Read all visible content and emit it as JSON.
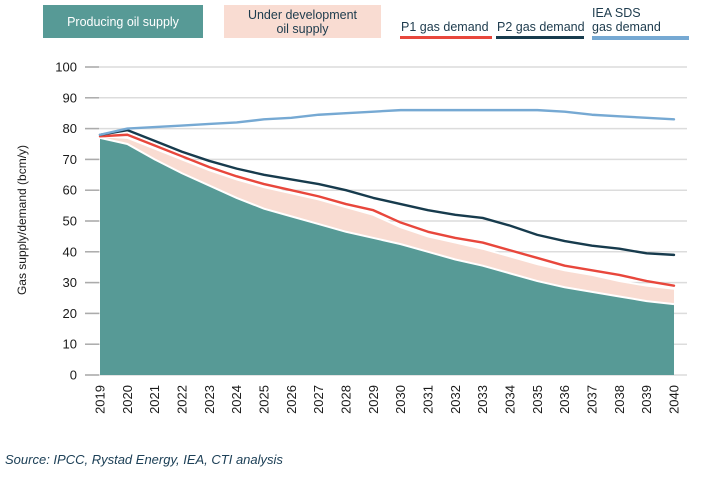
{
  "page": {
    "source_note": "Source: IPCC, Rystad Energy, IEA, CTI analysis"
  },
  "colors": {
    "producing_fill": "#579A96",
    "under_dev_fill": "#F9DCD2",
    "p1_line": "#E8473C",
    "p2_line": "#173B4D",
    "iea_line": "#76A9D3",
    "gridline": "#DCDCDC",
    "tick": "#ABABAB",
    "axis_text": "#1A1A1A",
    "legend_text_dark": "#1D3B4D",
    "legend_text_light": "#FFFFFF",
    "area_separator": "#FFFFFF",
    "source_text": "#1D4057"
  },
  "legend": {
    "producing_label": "Producing oil supply",
    "under_dev_label_line1": "Under development",
    "under_dev_label_line2": "oil supply",
    "p1_label": "P1 gas demand",
    "p2_label": "P2 gas demand",
    "iea_label_line1": "IEA SDS",
    "iea_label_line2": "gas demand"
  },
  "axes": {
    "y_label": "Gas supply/demand (bcm/y)",
    "y_ticks": [
      0,
      10,
      20,
      30,
      40,
      50,
      60,
      70,
      80,
      90,
      100
    ]
  },
  "chart_data": {
    "type": "area",
    "title": "",
    "xlabel": "",
    "ylabel": "Gas supply/demand (bcm/y)",
    "ylim": [
      0,
      100
    ],
    "grid": true,
    "legend_position": "top",
    "x_categories": [
      "2019",
      "2020",
      "2021",
      "2022",
      "2023",
      "2024",
      "2025",
      "2026",
      "2027",
      "2028",
      "2029",
      "2030",
      "2031",
      "2032",
      "2033",
      "2034",
      "2035",
      "2036",
      "2037",
      "2038",
      "2039",
      "2040"
    ],
    "series": [
      {
        "name": "Producing oil supply",
        "type": "area-stacked",
        "color": "#579A96",
        "values": [
          77,
          75,
          70,
          65.5,
          61.5,
          57.5,
          54,
          51.5,
          49,
          46.5,
          44.5,
          42.5,
          40,
          37.5,
          35.5,
          33,
          30.5,
          28.5,
          27,
          25.5,
          24,
          23
        ]
      },
      {
        "name": "Under development oil supply",
        "type": "area-stacked",
        "stacked_on": "Producing oil supply",
        "color": "#F9DCD2",
        "values": [
          0.5,
          2,
          3.5,
          4.5,
          5,
          6,
          7,
          7.5,
          8,
          8,
          7.5,
          5.5,
          5,
          5.5,
          5.5,
          5.5,
          5.5,
          5.5,
          5.5,
          5,
          5,
          5
        ]
      },
      {
        "name": "P1 gas demand",
        "type": "line",
        "color": "#E8473C",
        "values": [
          77.5,
          78,
          74.5,
          71,
          67.5,
          64.5,
          62,
          60,
          58,
          55.5,
          53.5,
          49.5,
          46.5,
          44.5,
          43,
          40.5,
          38,
          35.5,
          34,
          32.5,
          30.5,
          29
        ]
      },
      {
        "name": "P2 gas demand",
        "type": "line",
        "color": "#173B4D",
        "values": [
          78,
          79.5,
          76,
          72.5,
          69.5,
          67,
          65,
          63.5,
          62,
          60,
          57.5,
          55.5,
          53.5,
          52,
          51,
          48.5,
          45.5,
          43.5,
          42,
          41,
          39.5,
          39
        ]
      },
      {
        "name": "IEA SDS gas demand",
        "type": "line",
        "color": "#76A9D3",
        "values": [
          78,
          80,
          80.5,
          81,
          81.5,
          82,
          83,
          83.5,
          84.5,
          85,
          85.5,
          86,
          86,
          86,
          86,
          86,
          86,
          85.5,
          84.5,
          84,
          83.5,
          83
        ]
      }
    ]
  }
}
